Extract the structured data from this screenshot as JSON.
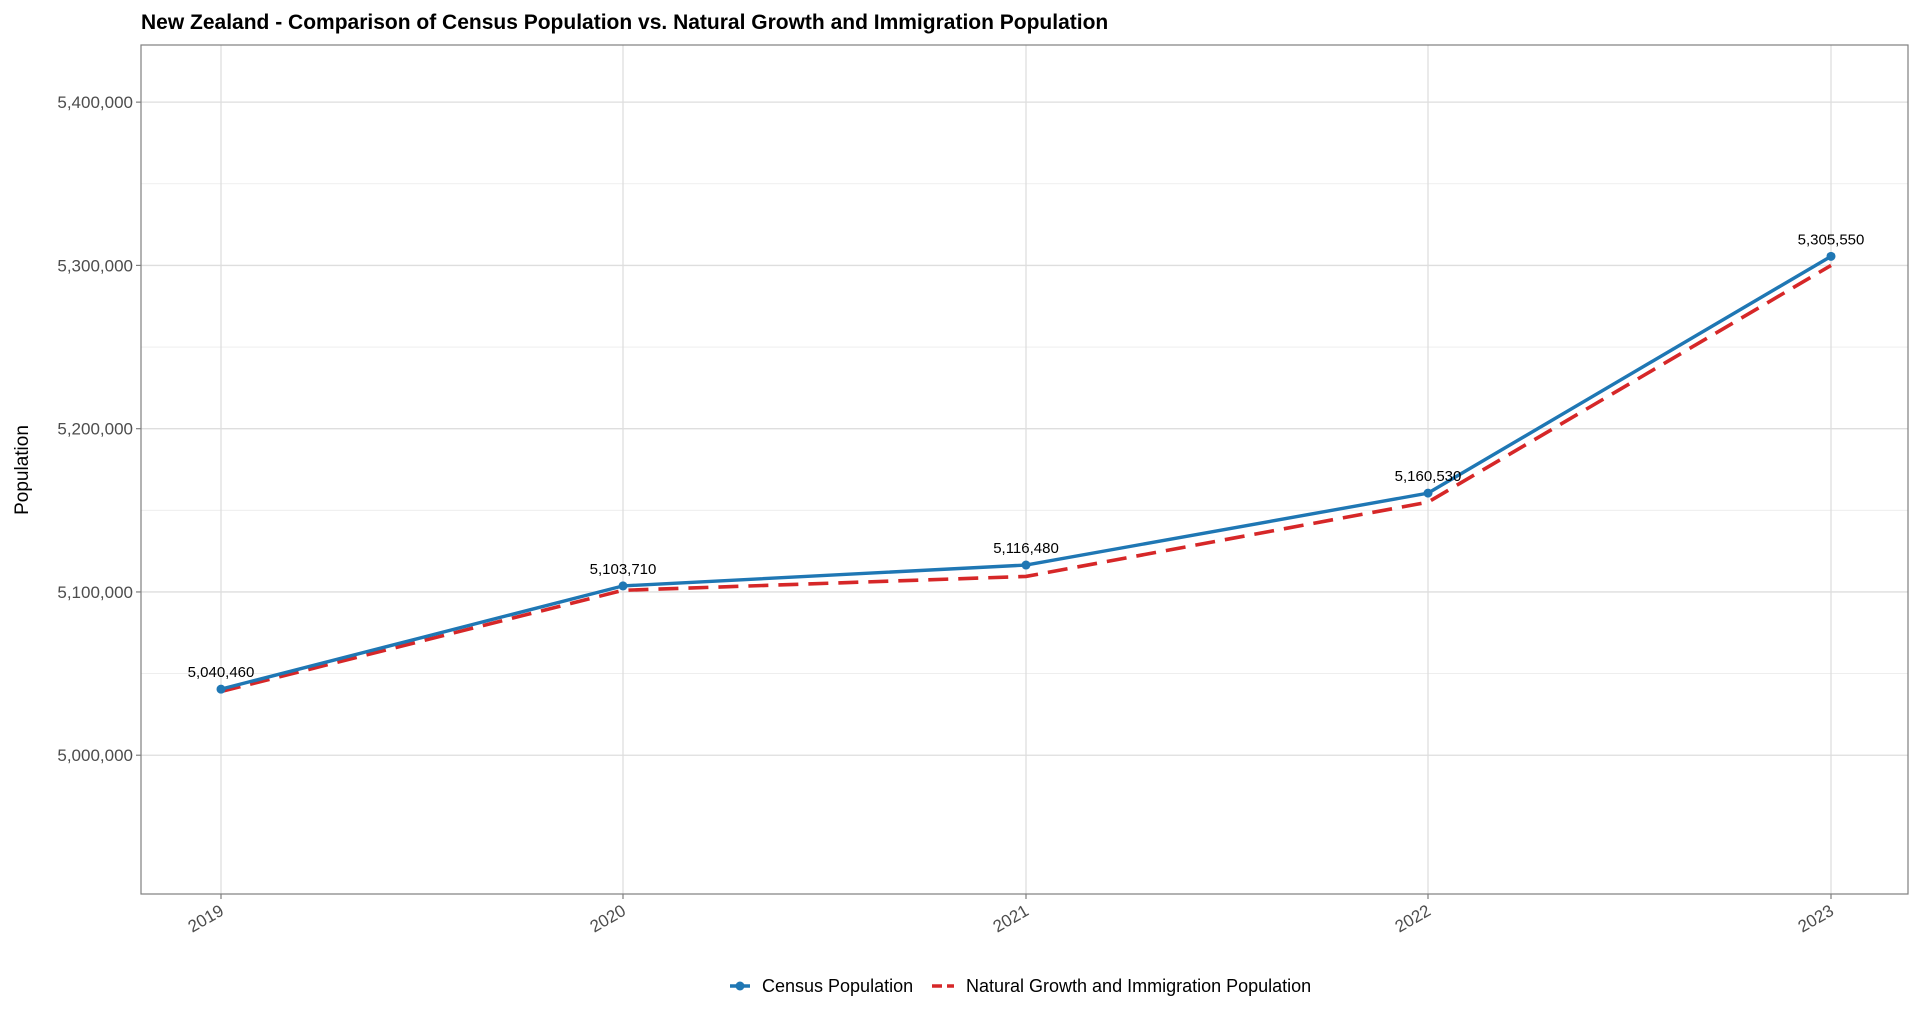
{
  "chart_data": {
    "type": "line",
    "title": "New Zealand - Comparison of Census Population vs. Natural Growth and Immigration Population",
    "ylabel": "Population",
    "xlabel": "",
    "x": [
      "2019",
      "2020",
      "2021",
      "2022",
      "2023"
    ],
    "ylim": [
      4915000,
      5435000
    ],
    "yticks": [
      5000000,
      5100000,
      5200000,
      5300000,
      5400000
    ],
    "ytick_labels": [
      "5,000,000",
      "5,100,000",
      "5,200,000",
      "5,300,000",
      "5,400,000"
    ],
    "grid": true,
    "legend_position": "bottom",
    "series": [
      {
        "name": "Census Population",
        "values": [
          5040460,
          5103710,
          5116480,
          5160530,
          5305550
        ],
        "labels": [
          "5,040,460",
          "5,103,710",
          "5,116,480",
          "5,160,530",
          "5,305,550"
        ],
        "color": "#1f77b4",
        "style": "solid-with-points"
      },
      {
        "name": "Natural Growth and Immigration Population",
        "values": [
          5039000,
          5101000,
          5109500,
          5155000,
          5300000
        ],
        "color": "#d62728",
        "style": "dashed"
      }
    ]
  }
}
